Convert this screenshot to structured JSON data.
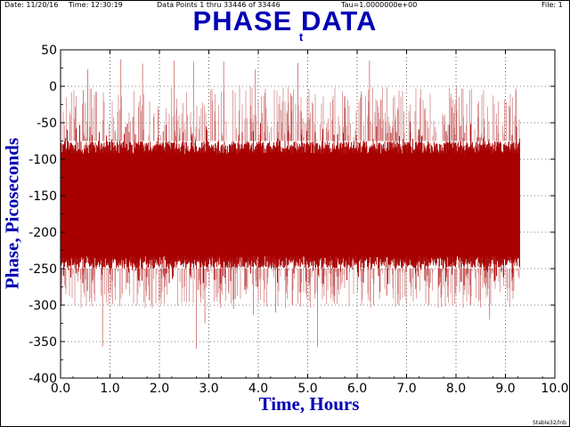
{
  "header": {
    "date": "Date: 11/20/16",
    "time": "Time: 12:30:19",
    "data_points": "Data Points 1 thru 33446 of 33446",
    "tau": "Tau=1.0000000e+00",
    "file": "File: 1"
  },
  "footer": "Stable32/lnb",
  "colors": {
    "title": "#0000b4",
    "data": "#a80000",
    "data_light": "#c86464",
    "axis": "#000000",
    "grid": "#000000"
  },
  "chart_data": {
    "type": "line",
    "title": "PHASE DATA",
    "title_subscript": "t",
    "xlabel": "Time,  Hours",
    "ylabel": "Phase,  Picoseconds",
    "xlim": [
      0.0,
      10.0
    ],
    "ylim": [
      -400,
      50
    ],
    "x_ticks": [
      0.0,
      1.0,
      2.0,
      3.0,
      4.0,
      5.0,
      6.0,
      7.0,
      8.0,
      9.0,
      10.0
    ],
    "x_tick_labels": [
      "0.0",
      "1.0",
      "2.0",
      "3.0",
      "4.0",
      "5.0",
      "6.0",
      "7.0",
      "8.0",
      "9.0",
      "10.0"
    ],
    "y_ticks": [
      50,
      0,
      -50,
      -100,
      -150,
      -200,
      -250,
      -300,
      -350,
      -400
    ],
    "y_tick_labels": [
      "50",
      "0",
      "-50",
      "-100",
      "-150",
      "-200",
      "-250",
      "-300",
      "-350",
      "-400"
    ],
    "grid": "dotted",
    "series": [
      {
        "points": 33446,
        "x_range": [
          0.0,
          9.29
        ],
        "dense_band": [
          -250,
          -75
        ],
        "mean": -160,
        "spike_max": 37,
        "spike_min": -360,
        "spikes_high": [
          [
            1.22,
            37
          ],
          [
            1.66,
            31
          ],
          [
            2.3,
            35
          ],
          [
            2.69,
            34
          ],
          [
            3.3,
            34
          ],
          [
            4.8,
            32
          ],
          [
            6.25,
            35
          ],
          [
            0.55,
            23
          ],
          [
            0.3,
            -28
          ],
          [
            3.94,
            23
          ],
          [
            0.46,
            -5
          ]
        ],
        "spikes_low": [
          [
            0.85,
            -357
          ],
          [
            2.75,
            -360
          ],
          [
            5.2,
            -357
          ],
          [
            3.9,
            -313
          ],
          [
            8.68,
            -320
          ],
          [
            4.35,
            -310
          ],
          [
            6.33,
            -300
          ],
          [
            2.92,
            -325
          ],
          [
            0.02,
            -300
          ],
          [
            3.5,
            -305
          ],
          [
            7.45,
            -300
          ]
        ]
      }
    ]
  }
}
